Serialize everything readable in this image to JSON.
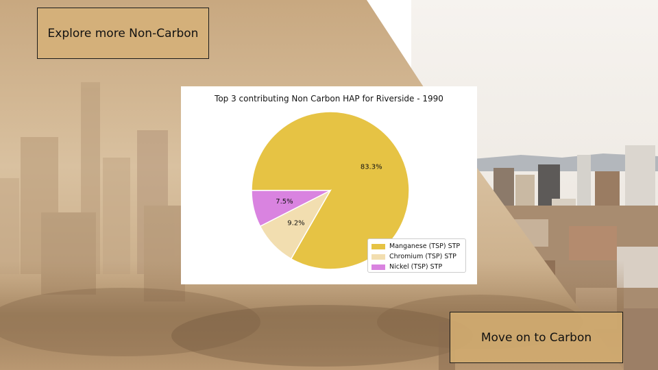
{
  "buttons": {
    "explore_label": "Explore more Non-Carbon",
    "carbon_label": "Move on to Carbon"
  },
  "colors": {
    "manganese": "#e6c344",
    "chromium": "#f2deb0",
    "nickel": "#d983e0",
    "button_tan": "#d4b07a"
  },
  "chart_data": {
    "type": "pie",
    "title": "Top 3 contributing Non Carbon HAP for Riverside - 1990",
    "labels": [
      "Manganese (TSP) STP",
      "Chromium (TSP) STP",
      "Nickel (TSP) STP"
    ],
    "values": [
      83.3,
      9.2,
      7.5
    ],
    "value_labels": [
      "83.3%",
      "9.2%",
      "7.5%"
    ],
    "legend_position": "lower-right"
  }
}
